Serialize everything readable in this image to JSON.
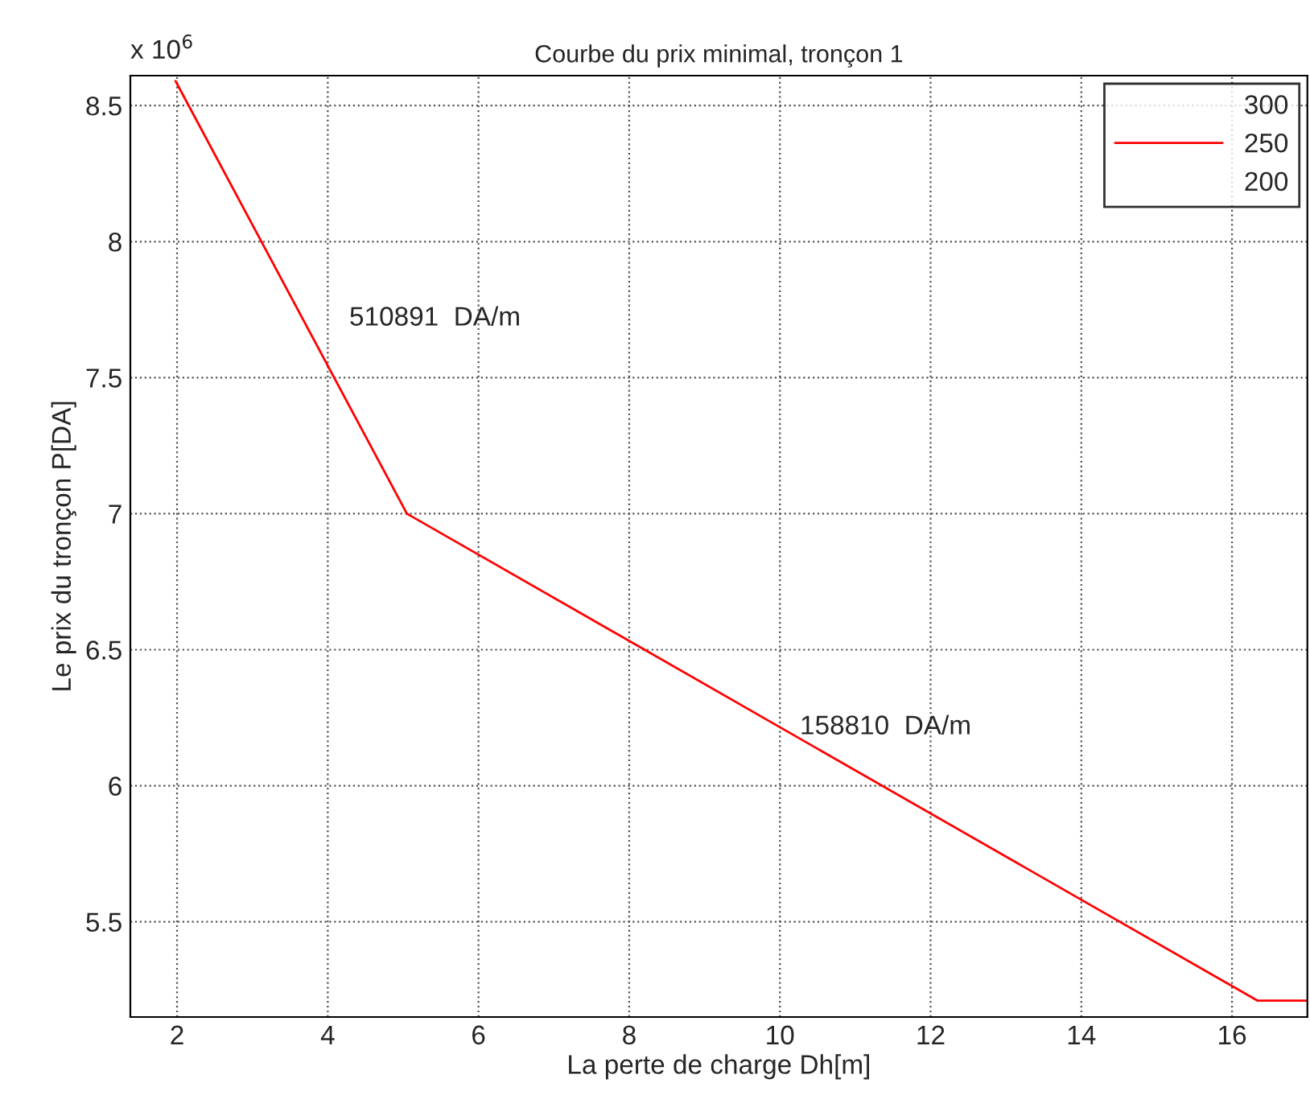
{
  "chart_data": {
    "type": "line",
    "title": "Courbe du prix minimal, tronçon 1",
    "xlabel": "La perte de charge Dh[m]",
    "ylabel": "Le prix du tronçon P[DA]",
    "x": [
      1.98,
      5.05,
      16.34,
      17.0
    ],
    "series": [
      {
        "name": "300",
        "values": [
          null,
          null,
          null,
          null
        ]
      },
      {
        "name": "250",
        "color": "#ff0000",
        "values": [
          8.59,
          7.0,
          5.21,
          5.21
        ]
      },
      {
        "name": "200",
        "values": [
          null,
          null,
          null,
          null
        ]
      }
    ],
    "annotations": [
      "x 10$^{6}$",
      "510891  DA/m",
      "158810  DA/m"
    ],
    "xlim": [
      1.38,
      17.0
    ],
    "ylim": [
      5.15,
      8.61
    ],
    "xticks": [
      2,
      4,
      6,
      8,
      10,
      12,
      14,
      16
    ],
    "yticks": [
      5.5,
      6,
      6.5,
      7,
      7.5,
      8,
      8.5
    ],
    "grid": true,
    "legend": "top right",
    "line_style": "solid",
    "marker": "none"
  }
}
